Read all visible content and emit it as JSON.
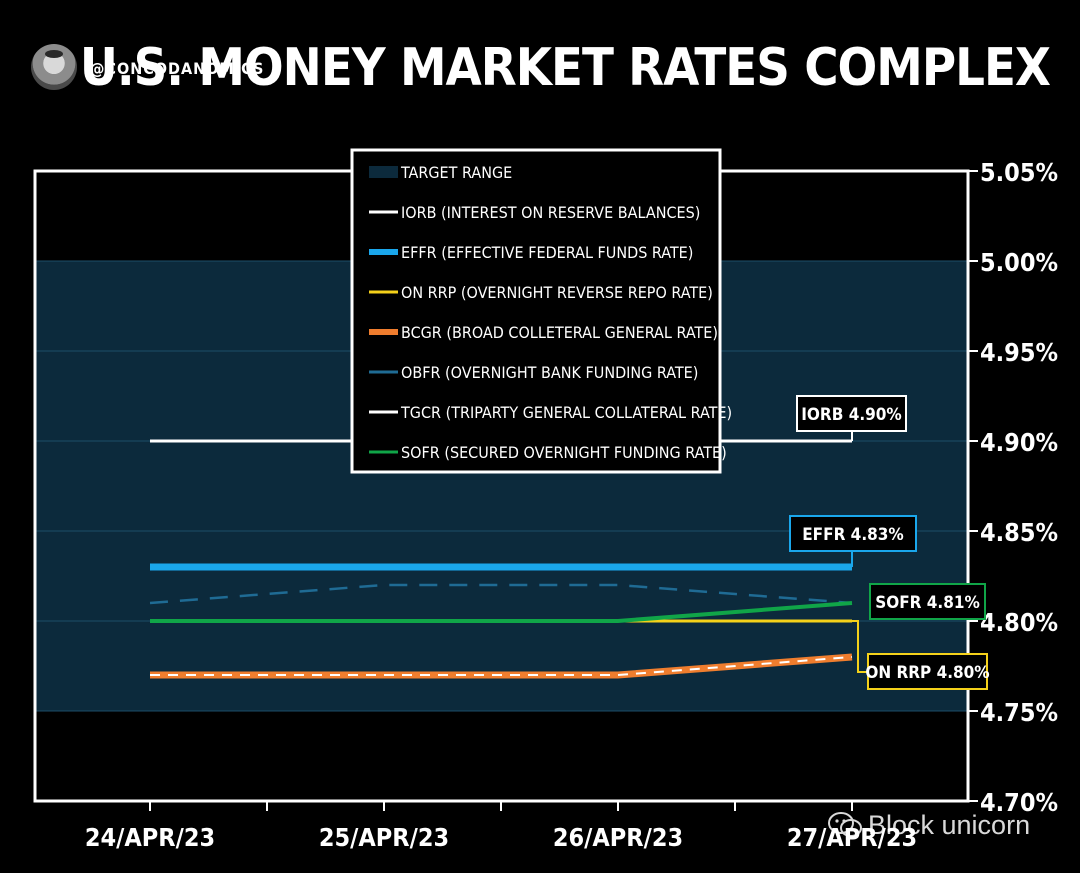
{
  "header": {
    "handle": "@CONCODANOMICS",
    "title": "U.S. MONEY MARKET RATES COMPLEX"
  },
  "watermark": "Block unicorn",
  "chart_data": {
    "type": "line",
    "title": "U.S. MONEY MARKET RATES COMPLEX",
    "x": [
      "24/APR/23",
      "25/APR/23",
      "26/APR/23",
      "27/APR/23"
    ],
    "ylim": [
      4.7,
      5.05
    ],
    "yticks": [
      "5.05%",
      "5.00%",
      "4.95%",
      "4.90%",
      "4.85%",
      "4.80%",
      "4.75%",
      "4.70%"
    ],
    "target_range": [
      4.75,
      5.0
    ],
    "series": [
      {
        "name": "IORB (INTEREST ON RESERVE BALANCES)",
        "color": "#ffffff",
        "style": "solid",
        "values": [
          4.9,
          4.9,
          4.9,
          4.9
        ]
      },
      {
        "name": "EFFR (EFFECTIVE FEDERAL FUNDS RATE)",
        "color": "#1aa7ec",
        "style": "solid",
        "values": [
          4.83,
          4.83,
          4.83,
          4.83
        ]
      },
      {
        "name": "ON RRP (OVERNIGHT REVERSE REPO RATE)",
        "color": "#f4d11a",
        "style": "solid",
        "values": [
          4.8,
          4.8,
          4.8,
          4.8
        ]
      },
      {
        "name": "BCGR (BROAD COLLETERAL GENERAL RATE)",
        "color": "#ef7d2e",
        "style": "solid",
        "values": [
          4.77,
          4.77,
          4.77,
          4.78
        ]
      },
      {
        "name": "OBFR (OVERNIGHT BANK FUNDING RATE)",
        "color": "#1f6b94",
        "style": "dashed",
        "values": [
          4.81,
          4.82,
          4.82,
          4.81
        ]
      },
      {
        "name": "TGCR (TRIPARTY GENERAL COLLATERAL RATE)",
        "color": "#ffffff",
        "style": "dashed",
        "values": [
          4.77,
          4.77,
          4.77,
          4.78
        ]
      },
      {
        "name": "SOFR (SECURED OVERNIGHT FUNDING RATE)",
        "color": "#10a548",
        "style": "solid",
        "values": [
          4.8,
          4.8,
          4.8,
          4.81
        ]
      }
    ],
    "legend": {
      "placement": "top-center",
      "items": [
        {
          "label": "TARGET RANGE",
          "color": "#0c2a3c",
          "kind": "box"
        },
        {
          "label": "IORB (INTEREST ON RESERVE BALANCES)",
          "color": "#ffffff",
          "kind": "line"
        },
        {
          "label": "EFFR (EFFECTIVE FEDERAL FUNDS RATE)",
          "color": "#1aa7ec",
          "kind": "thick"
        },
        {
          "label": "ON RRP (OVERNIGHT REVERSE REPO RATE)",
          "color": "#f4d11a",
          "kind": "line"
        },
        {
          "label": "BCGR (BROAD COLLETERAL GENERAL RATE)",
          "color": "#ef7d2e",
          "kind": "thick"
        },
        {
          "label": "OBFR (OVERNIGHT BANK FUNDING RATE)",
          "color": "#1f6b94",
          "kind": "line"
        },
        {
          "label": "TGCR (TRIPARTY GENERAL COLLATERAL RATE)",
          "color": "#ffffff",
          "kind": "line"
        },
        {
          "label": "SOFR (SECURED OVERNIGHT FUNDING RATE)",
          "color": "#10a548",
          "kind": "line"
        }
      ]
    },
    "annotations": [
      {
        "text": "IORB 4.90%",
        "color": "#ffffff",
        "value": 4.9
      },
      {
        "text": "EFFR 4.83%",
        "color": "#1aa7ec",
        "value": 4.83
      },
      {
        "text": "SOFR 4.81%",
        "color": "#10a548",
        "value": 4.81
      },
      {
        "text": "ON RRP 4.80%",
        "color": "#f4d11a",
        "value": 4.8
      }
    ]
  }
}
